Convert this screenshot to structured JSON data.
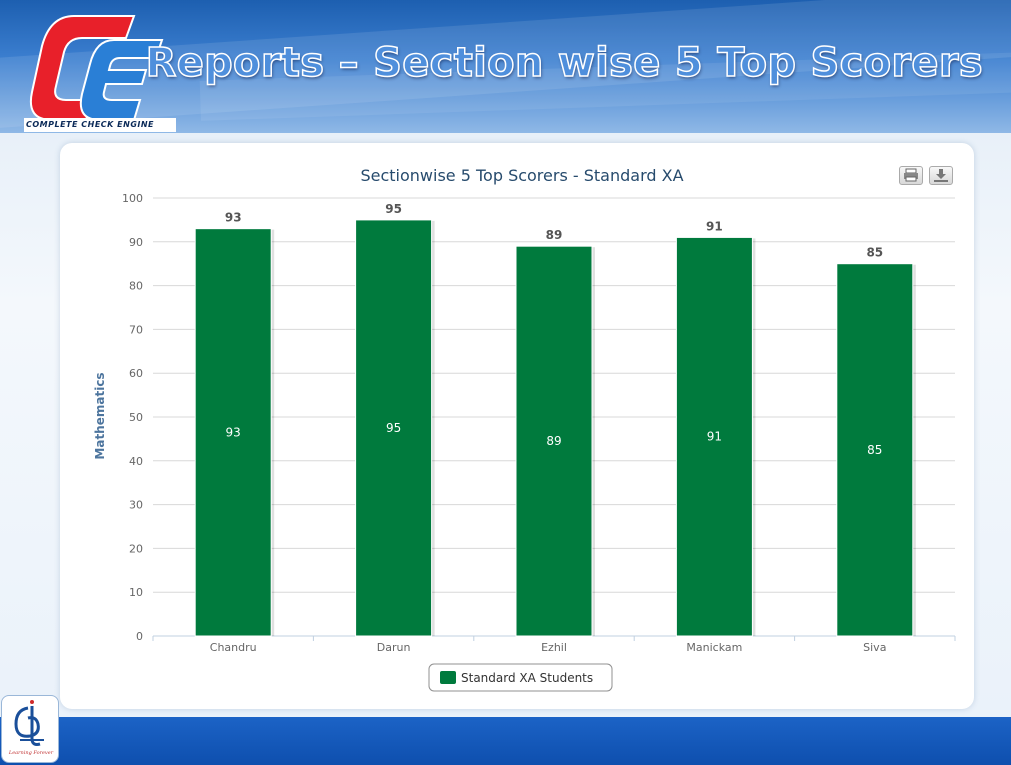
{
  "header": {
    "title": "Reports – Section wise 5 Top Scorers",
    "logo_caption": "COMPLETE CHECK ENGINE"
  },
  "footer": {
    "badge_caption": "Learning Forever"
  },
  "colors": {
    "bar": "#007a3d",
    "header_blue": "#1d5fb0",
    "footer_blue": "#0e4fae",
    "logo_red": "#e8202a",
    "logo_blue": "#2a7fd6"
  },
  "toolbar": {
    "print_icon": "print-icon",
    "export_icon": "download-icon"
  },
  "chart_data": {
    "type": "bar",
    "title": "Sectionwise 5 Top Scorers - Standard XA",
    "xlabel": "",
    "ylabel": "Mathematics",
    "categories": [
      "Chandru",
      "Darun",
      "Ezhil",
      "Manickam",
      "Siva"
    ],
    "series": [
      {
        "name": "Standard XA Students",
        "values": [
          93,
          95,
          89,
          91,
          85
        ],
        "color": "#007a3d"
      }
    ],
    "ylim": [
      0,
      100
    ],
    "yticks": [
      0,
      10,
      20,
      30,
      40,
      50,
      60,
      70,
      80,
      90,
      100
    ],
    "grid": true,
    "legend": "bottom-center",
    "data_labels": "top and inside"
  }
}
